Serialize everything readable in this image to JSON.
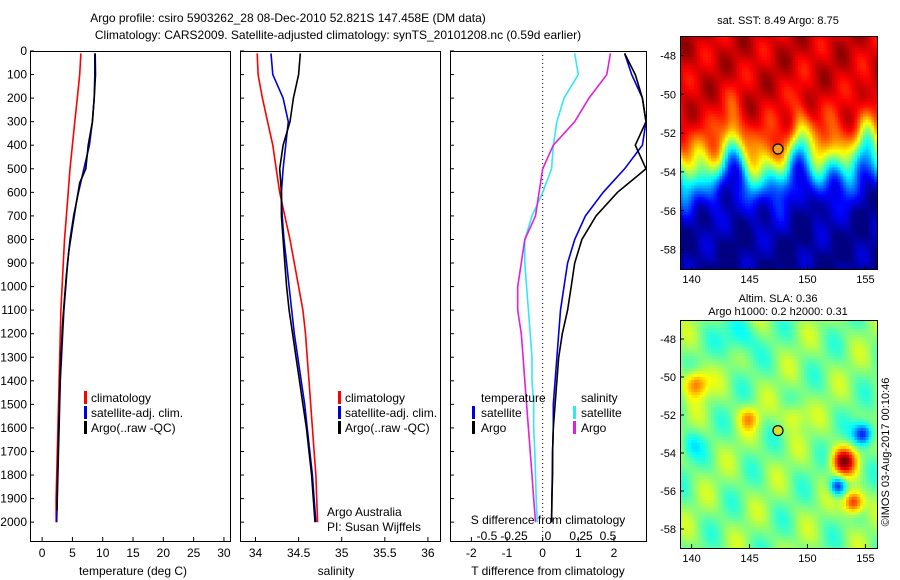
{
  "header": {
    "line1": "Argo profile: csiro 5903262_28 08-Dec-2010 52.821S 147.458E (DM data)",
    "line2": "Climatology: CARS2009. Satellite-adjusted climatology: synTS_20101208.nc (0.59d earlier)"
  },
  "side_text": "©IMOS 03-Aug-2017 00:10:46",
  "colors": {
    "climatology": "#ff0000",
    "satellite": "#0000dd",
    "argo": "#000000",
    "sat_salinity": "#33e8f0",
    "argo_salinity": "#e020e0"
  },
  "chart_data": [
    {
      "type": "line",
      "id": "temperature",
      "xlabel": "temperature (deg C)",
      "ylabel": "",
      "xlim": [
        -2,
        31
      ],
      "ylim": [
        2080,
        0
      ],
      "xticks": [
        0,
        5,
        10,
        15,
        20,
        25,
        30
      ],
      "yticks": [
        0,
        100,
        200,
        300,
        400,
        500,
        600,
        700,
        800,
        900,
        1000,
        1100,
        1200,
        1300,
        1400,
        1500,
        1600,
        1700,
        1800,
        1900,
        2000
      ],
      "legend": [
        "climatology",
        "satellite-adj. clim.",
        "Argo(..raw -QC)"
      ],
      "series": [
        {
          "name": "climatology",
          "color": "#ff0000",
          "points": [
            [
              6.4,
              10
            ],
            [
              6.2,
              100
            ],
            [
              5.8,
              200
            ],
            [
              5.4,
              300
            ],
            [
              5.0,
              400
            ],
            [
              4.6,
              500
            ],
            [
              4.3,
              600
            ],
            [
              4.0,
              700
            ],
            [
              3.7,
              800
            ],
            [
              3.5,
              900
            ],
            [
              3.3,
              1000
            ],
            [
              3.1,
              1100
            ],
            [
              3.0,
              1200
            ],
            [
              2.9,
              1300
            ],
            [
              2.8,
              1400
            ],
            [
              2.7,
              1500
            ],
            [
              2.6,
              1600
            ],
            [
              2.5,
              1700
            ],
            [
              2.4,
              1800
            ],
            [
              2.3,
              1900
            ],
            [
              2.3,
              2000
            ]
          ]
        },
        {
          "name": "satellite-adj. clim.",
          "color": "#0000dd",
          "points": [
            [
              8.7,
              10
            ],
            [
              8.7,
              100
            ],
            [
              8.6,
              200
            ],
            [
              8.3,
              300
            ],
            [
              7.8,
              400
            ],
            [
              6.9,
              500
            ],
            [
              6.0,
              600
            ],
            [
              5.2,
              700
            ],
            [
              4.6,
              800
            ],
            [
              4.2,
              900
            ],
            [
              3.9,
              1000
            ],
            [
              3.6,
              1100
            ],
            [
              3.4,
              1200
            ],
            [
              3.2,
              1300
            ],
            [
              3.0,
              1400
            ],
            [
              2.9,
              1500
            ],
            [
              2.8,
              1600
            ],
            [
              2.7,
              1700
            ],
            [
              2.6,
              1800
            ],
            [
              2.5,
              1900
            ],
            [
              2.4,
              2000
            ]
          ]
        },
        {
          "name": "Argo(..raw -QC)",
          "color": "#000000",
          "points": [
            [
              8.75,
              10
            ],
            [
              8.8,
              100
            ],
            [
              8.6,
              200
            ],
            [
              8.3,
              300
            ],
            [
              7.6,
              400
            ],
            [
              7.2,
              500
            ],
            [
              6.2,
              560
            ],
            [
              5.6,
              650
            ],
            [
              5.0,
              750
            ],
            [
              4.4,
              850
            ],
            [
              4.0,
              950
            ],
            [
              3.7,
              1050
            ],
            [
              3.4,
              1150
            ],
            [
              3.2,
              1250
            ],
            [
              3.0,
              1350
            ],
            [
              2.9,
              1450
            ],
            [
              2.8,
              1550
            ],
            [
              2.7,
              1650
            ],
            [
              2.6,
              1750
            ],
            [
              2.5,
              1850
            ],
            [
              2.45,
              1950
            ]
          ]
        }
      ]
    },
    {
      "type": "line",
      "id": "salinity",
      "xlabel": "salinity",
      "ylabel": "",
      "xlim": [
        33.82,
        36.14
      ],
      "ylim": [
        2080,
        0
      ],
      "xticks": [
        34,
        34.5,
        35,
        35.5,
        36
      ],
      "legend": [
        "climatology",
        "satellite-adj. clim.",
        "Argo(..raw -QC)"
      ],
      "annotations": [
        "Argo Australia",
        "PI: Susan Wijffels"
      ],
      "series": [
        {
          "name": "climatology",
          "color": "#ff0000",
          "points": [
            [
              34.02,
              10
            ],
            [
              34.03,
              100
            ],
            [
              34.08,
              200
            ],
            [
              34.14,
              300
            ],
            [
              34.2,
              400
            ],
            [
              34.24,
              500
            ],
            [
              34.28,
              600
            ],
            [
              34.34,
              700
            ],
            [
              34.4,
              800
            ],
            [
              34.45,
              900
            ],
            [
              34.5,
              1000
            ],
            [
              34.55,
              1100
            ],
            [
              34.58,
              1200
            ],
            [
              34.6,
              1300
            ],
            [
              34.62,
              1400
            ],
            [
              34.64,
              1500
            ],
            [
              34.66,
              1600
            ],
            [
              34.68,
              1700
            ],
            [
              34.7,
              1800
            ],
            [
              34.71,
              1900
            ],
            [
              34.72,
              2000
            ]
          ]
        },
        {
          "name": "satellite-adj. clim.",
          "color": "#0000dd",
          "points": [
            [
              34.18,
              10
            ],
            [
              34.2,
              100
            ],
            [
              34.32,
              200
            ],
            [
              34.38,
              300
            ],
            [
              34.35,
              400
            ],
            [
              34.32,
              500
            ],
            [
              34.3,
              600
            ],
            [
              34.31,
              700
            ],
            [
              34.33,
              800
            ],
            [
              34.36,
              900
            ],
            [
              34.39,
              1000
            ],
            [
              34.42,
              1100
            ],
            [
              34.45,
              1200
            ],
            [
              34.49,
              1300
            ],
            [
              34.53,
              1400
            ],
            [
              34.57,
              1500
            ],
            [
              34.6,
              1600
            ],
            [
              34.63,
              1700
            ],
            [
              34.66,
              1800
            ],
            [
              34.68,
              1900
            ],
            [
              34.7,
              2000
            ]
          ]
        },
        {
          "name": "Argo(..raw -QC)",
          "color": "#000000",
          "points": [
            [
              34.52,
              10
            ],
            [
              34.5,
              100
            ],
            [
              34.44,
              200
            ],
            [
              34.4,
              300
            ],
            [
              34.32,
              400
            ],
            [
              34.28,
              500
            ],
            [
              34.3,
              600
            ],
            [
              34.3,
              700
            ],
            [
              34.32,
              800
            ],
            [
              34.34,
              900
            ],
            [
              34.36,
              1000
            ],
            [
              34.39,
              1100
            ],
            [
              34.43,
              1200
            ],
            [
              34.47,
              1300
            ],
            [
              34.51,
              1400
            ],
            [
              34.55,
              1500
            ],
            [
              34.59,
              1600
            ],
            [
              34.62,
              1700
            ],
            [
              34.65,
              1800
            ],
            [
              34.67,
              1900
            ],
            [
              34.69,
              2000
            ]
          ]
        }
      ]
    },
    {
      "type": "line",
      "id": "differences",
      "xlabel": "T difference from climatology",
      "xlabel_top": "S difference from climatology",
      "xlim": [
        -2.6,
        2.9
      ],
      "ylim": [
        2080,
        0
      ],
      "xticks": [
        -2,
        -1,
        0,
        1,
        2
      ],
      "xticks_s": [
        "-0.5",
        "-0.25",
        "0",
        "0.25",
        "0.5"
      ],
      "legend_headers": [
        "temperature",
        "salinity"
      ],
      "legend": [
        "satellite",
        "Argo",
        "satellite",
        "Argo"
      ],
      "series": [
        {
          "name": "satellite",
          "group": "temperature",
          "color": "#0000dd",
          "points": [
            [
              2.3,
              10
            ],
            [
              2.5,
              100
            ],
            [
              2.8,
              200
            ],
            [
              2.9,
              300
            ],
            [
              2.8,
              400
            ],
            [
              2.3,
              500
            ],
            [
              1.7,
              600
            ],
            [
              1.2,
              700
            ],
            [
              0.9,
              800
            ],
            [
              0.7,
              900
            ],
            [
              0.6,
              1000
            ],
            [
              0.5,
              1100
            ],
            [
              0.45,
              1200
            ],
            [
              0.4,
              1300
            ],
            [
              0.35,
              1400
            ],
            [
              0.3,
              1500
            ],
            [
              0.3,
              1600
            ],
            [
              0.28,
              1700
            ],
            [
              0.28,
              1800
            ],
            [
              0.26,
              1900
            ],
            [
              0.25,
              2000
            ]
          ]
        },
        {
          "name": "Argo",
          "group": "temperature",
          "color": "#000000",
          "points": [
            [
              2.3,
              10
            ],
            [
              2.6,
              100
            ],
            [
              2.8,
              200
            ],
            [
              2.9,
              300
            ],
            [
              2.6,
              400
            ],
            [
              2.9,
              500
            ],
            [
              2.1,
              600
            ],
            [
              1.5,
              700
            ],
            [
              1.1,
              800
            ],
            [
              0.9,
              900
            ],
            [
              0.8,
              1000
            ],
            [
              0.7,
              1100
            ],
            [
              0.55,
              1200
            ],
            [
              0.45,
              1300
            ],
            [
              0.4,
              1400
            ],
            [
              0.35,
              1500
            ],
            [
              0.3,
              1600
            ],
            [
              0.28,
              1700
            ],
            [
              0.27,
              1800
            ],
            [
              0.26,
              1900
            ],
            [
              0.25,
              2000
            ]
          ]
        },
        {
          "name": "satellite",
          "group": "salinity",
          "color": "#33e8f0",
          "points": [
            [
              0.9,
              10
            ],
            [
              1.0,
              100
            ],
            [
              0.6,
              200
            ],
            [
              0.4,
              300
            ],
            [
              0.3,
              400
            ],
            [
              0.25,
              500
            ],
            [
              0.0,
              600
            ],
            [
              -0.3,
              700
            ],
            [
              -0.5,
              800
            ],
            [
              -0.5,
              900
            ],
            [
              -0.45,
              1000
            ],
            [
              -0.4,
              1100
            ],
            [
              -0.35,
              1200
            ],
            [
              -0.3,
              1300
            ],
            [
              -0.3,
              1400
            ],
            [
              -0.25,
              1500
            ],
            [
              -0.25,
              1600
            ],
            [
              -0.22,
              1700
            ],
            [
              -0.2,
              1800
            ],
            [
              -0.18,
              1900
            ],
            [
              -0.15,
              2000
            ]
          ]
        },
        {
          "name": "Argo",
          "group": "salinity",
          "color": "#e020e0",
          "points": [
            [
              1.9,
              10
            ],
            [
              1.8,
              100
            ],
            [
              1.3,
              200
            ],
            [
              0.9,
              300
            ],
            [
              0.3,
              400
            ],
            [
              0.0,
              500
            ],
            [
              -0.1,
              600
            ],
            [
              -0.2,
              700
            ],
            [
              -0.5,
              800
            ],
            [
              -0.6,
              900
            ],
            [
              -0.7,
              1000
            ],
            [
              -0.7,
              1100
            ],
            [
              -0.6,
              1200
            ],
            [
              -0.55,
              1300
            ],
            [
              -0.5,
              1400
            ],
            [
              -0.45,
              1500
            ],
            [
              -0.4,
              1600
            ],
            [
              -0.35,
              1700
            ],
            [
              -0.3,
              1800
            ],
            [
              -0.25,
              1900
            ],
            [
              -0.2,
              2000
            ]
          ]
        }
      ]
    },
    {
      "type": "heatmap",
      "id": "sst_map",
      "title": "sat. SST: 8.49  Argo: 8.75",
      "xlim": [
        139,
        156
      ],
      "ylim": [
        -59,
        -47
      ],
      "xticks": [
        140,
        145,
        150,
        155
      ],
      "yticks": [
        -48,
        -50,
        -52,
        -54,
        -56,
        -58
      ],
      "marker": [
        147.458,
        -52.821
      ]
    },
    {
      "type": "heatmap",
      "id": "sla_map",
      "title": "Altim. SLA: 0.36",
      "subtitle": "Argo h1000: 0.2 h2000: 0.31",
      "xlim": [
        139,
        156
      ],
      "ylim": [
        -59,
        -47
      ],
      "xticks": [
        140,
        145,
        150,
        155
      ],
      "yticks": [
        -48,
        -50,
        -52,
        -54,
        -56,
        -58
      ],
      "marker": [
        147.458,
        -52.821
      ]
    }
  ]
}
